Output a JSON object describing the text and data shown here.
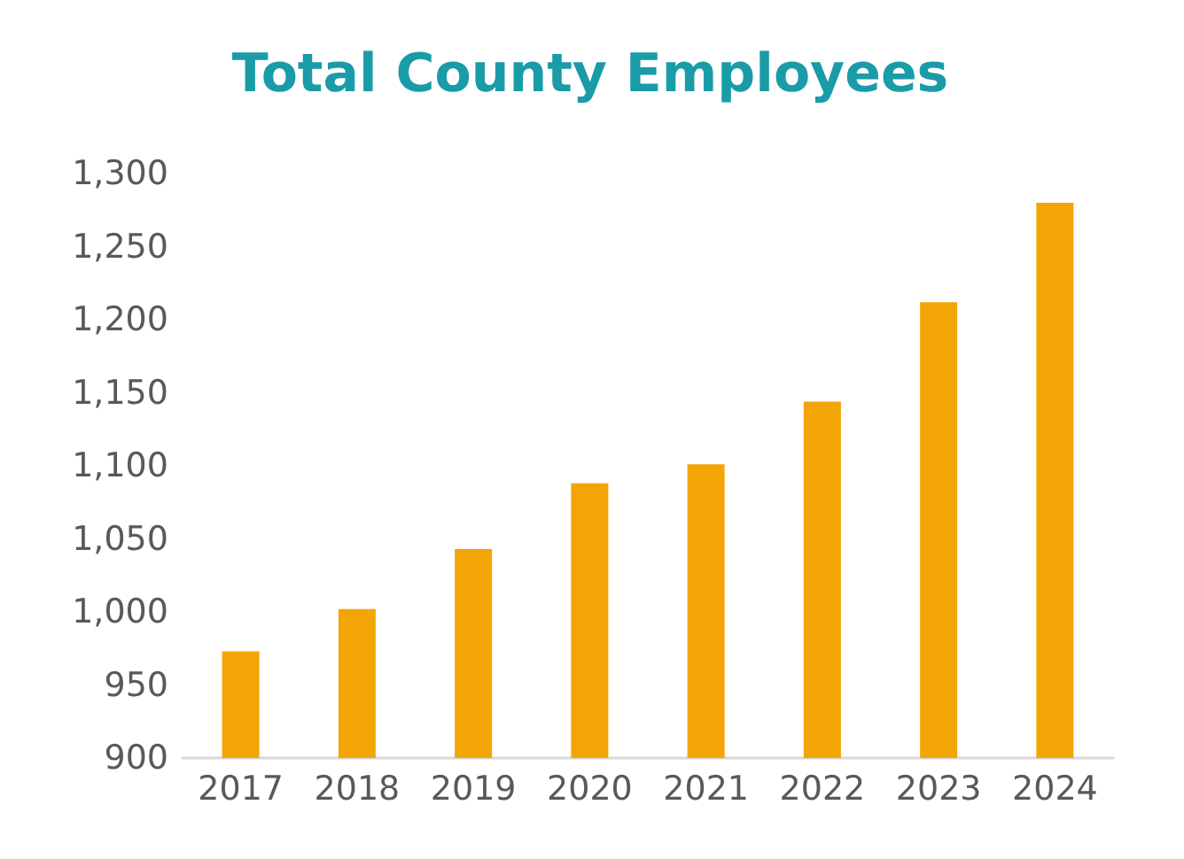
{
  "chart_data": {
    "type": "bar",
    "title": "Total County Employees",
    "categories": [
      "2017",
      "2018",
      "2019",
      "2020",
      "2021",
      "2022",
      "2023",
      "2024"
    ],
    "values": [
      973,
      1002,
      1043,
      1088,
      1101,
      1144,
      1212,
      1280
    ],
    "color": "#f4a506",
    "ylim": [
      900,
      1300
    ],
    "yticks": [
      900,
      950,
      {
        "value": 1000,
        "label": "1,000"
      },
      {
        "value": 1050,
        "label": "1,050"
      },
      {
        "value": 1100,
        "label": "1,100"
      },
      {
        "value": 1150,
        "label": "1,150"
      },
      {
        "value": 1200,
        "label": "1,200"
      },
      {
        "value": 1250,
        "label": "1,250"
      },
      {
        "value": 1300,
        "label": "1,300"
      }
    ],
    "grid": false
  }
}
